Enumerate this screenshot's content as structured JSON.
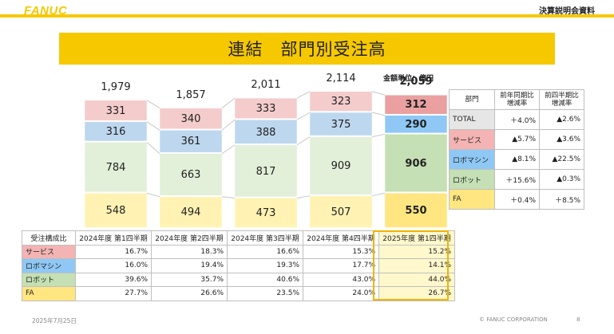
{
  "header": {
    "logo": "FANUC",
    "doc_label": "決算説明会資料"
  },
  "title": "連結　部門別受注高",
  "unit_label": "金額単位：億円",
  "chart_data": {
    "type": "bar",
    "stacked": true,
    "title": "連結　部門別受注高",
    "categories": [
      "2024年度 第1四半期",
      "2024年度 第2四半期",
      "2024年度 第3四半期",
      "2024年度 第4四半期",
      "2025年度 第1四半期"
    ],
    "totals": [
      1979,
      1857,
      2011,
      2114,
      2059
    ],
    "series": [
      {
        "name": "FA",
        "color": "#fff2b3",
        "highlight_color": "#ffe680",
        "values": [
          548,
          494,
          473,
          507,
          550
        ]
      },
      {
        "name": "ロボット",
        "color": "#e2efd9",
        "highlight_color": "#c5e0b4",
        "values": [
          784,
          663,
          817,
          909,
          906
        ]
      },
      {
        "name": "ロボマシン",
        "color": "#bdd7ee",
        "highlight_color": "#8fc8f5",
        "values": [
          316,
          361,
          388,
          375,
          290
        ]
      },
      {
        "name": "サービス",
        "color": "#f4cccc",
        "highlight_color": "#eaa0a0",
        "values": [
          331,
          340,
          333,
          323,
          312
        ]
      }
    ],
    "highlight_index": 4
  },
  "composition_table": {
    "header": [
      "受注構成比",
      "2024年度 第1四半期",
      "2024年度 第2四半期",
      "2024年度 第3四半期",
      "2024年度 第4四半期",
      "2025年度 第1四半期"
    ],
    "rows": [
      {
        "label": "サービス",
        "color": "#f4b4b4",
        "values": [
          "16.7%",
          "18.3%",
          "16.6%",
          "15.3%",
          "15.2%"
        ]
      },
      {
        "label": "ロボマシン",
        "color": "#8fc8f5",
        "values": [
          "16.0%",
          "19.4%",
          "19.3%",
          "17.7%",
          "14.1%"
        ]
      },
      {
        "label": "ロボット",
        "color": "#c5e0b4",
        "values": [
          "39.6%",
          "35.7%",
          "40.6%",
          "43.0%",
          "44.0%"
        ]
      },
      {
        "label": "FA",
        "color": "#ffe680",
        "values": [
          "27.7%",
          "26.6%",
          "23.5%",
          "24.0%",
          "26.7%"
        ]
      }
    ]
  },
  "growth_table": {
    "header": [
      "部門",
      "前年同期比\n増減率",
      "前四半期比\n増減率"
    ],
    "rows": [
      {
        "label": "TOTAL",
        "color": "#e6e6e6",
        "yoy": "＋4.0%",
        "qoq": "▲2.6%"
      },
      {
        "label": "サービス",
        "color": "#f4b4b4",
        "yoy": "▲5.7%",
        "qoq": "▲3.6%"
      },
      {
        "label": "ロボマシン",
        "color": "#8fc8f5",
        "yoy": "▲8.1%",
        "qoq": "▲22.5%"
      },
      {
        "label": "ロボット",
        "color": "#c5e0b4",
        "yoy": "＋15.6%",
        "qoq": "▲0.3%"
      },
      {
        "label": "FA",
        "color": "#ffe680",
        "yoy": "＋0.4%",
        "qoq": "＋8.5%"
      }
    ]
  },
  "footer": {
    "date": "2025年7月25日",
    "copyright": "© FANUC CORPORATION",
    "page": "8"
  }
}
